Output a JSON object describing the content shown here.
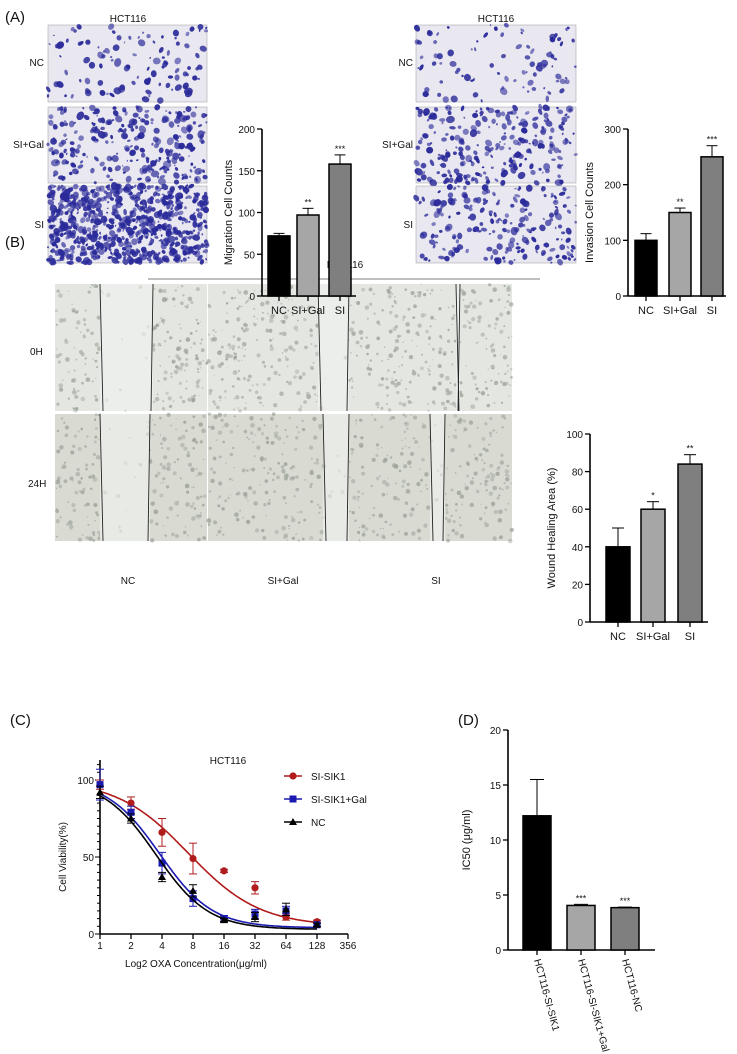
{
  "panels": {
    "A": {
      "label": "(A)",
      "left_title": "HCT116",
      "right_title": "HCT116",
      "row_labels": [
        "NC",
        "SI+Gal",
        "SI"
      ]
    },
    "B": {
      "label": "(B)",
      "title": "HCT116",
      "row_labels": [
        "0H",
        "24H"
      ],
      "col_labels": [
        "NC",
        "SI+Gal",
        "SI"
      ]
    },
    "C": {
      "label": "(C)"
    },
    "D": {
      "label": "(D)"
    }
  },
  "colors": {
    "black_bar": "#000000",
    "light_gray_bar": "#a6a6a6",
    "dark_gray_bar": "#7f7f7f",
    "si_sik1": "#b01c1c",
    "si_sik1_gal": "#1a1ab0",
    "nc": "#000000",
    "crystal_violet": "#2a2a9a"
  },
  "chart_data": [
    {
      "id": "migration",
      "type": "bar",
      "title": "",
      "xlabel": "",
      "ylabel": "Migration Cell Counts",
      "ylim": [
        0,
        200
      ],
      "yticks": [
        0,
        50,
        100,
        150,
        200
      ],
      "categories": [
        "NC",
        "SI+Gal",
        "SI"
      ],
      "values": [
        72,
        97,
        158
      ],
      "errors": [
        3,
        8,
        11
      ],
      "significance": [
        "",
        "**",
        "***"
      ],
      "bar_colors": [
        "#000000",
        "#a6a6a6",
        "#7f7f7f"
      ]
    },
    {
      "id": "invasion",
      "type": "bar",
      "title": "",
      "xlabel": "",
      "ylabel": "Invasion Cell Counts",
      "ylim": [
        0,
        300
      ],
      "yticks": [
        0,
        100,
        200,
        300
      ],
      "categories": [
        "NC",
        "SI+Gal",
        "SI"
      ],
      "values": [
        100,
        150,
        250
      ],
      "errors": [
        12,
        8,
        20
      ],
      "significance": [
        "",
        "**",
        "***"
      ],
      "bar_colors": [
        "#000000",
        "#a6a6a6",
        "#7f7f7f"
      ]
    },
    {
      "id": "wound",
      "type": "bar",
      "title": "",
      "xlabel": "",
      "ylabel": "Wound Healing Area (%)",
      "ylim": [
        0,
        100
      ],
      "yticks": [
        0,
        20,
        40,
        60,
        80,
        100
      ],
      "categories": [
        "NC",
        "SI+Gal",
        "SI"
      ],
      "values": [
        40,
        60,
        84
      ],
      "errors": [
        10,
        4,
        5
      ],
      "significance": [
        "",
        "*",
        "**"
      ],
      "bar_colors": [
        "#000000",
        "#a6a6a6",
        "#7f7f7f"
      ]
    },
    {
      "id": "viability",
      "type": "line",
      "title": "HCT116",
      "xlabel": "Log2 OXA Concentration(μg/ml)",
      "ylabel": "Cell Viability(%)",
      "xscale": "log2",
      "ylim": [
        0,
        110
      ],
      "yticks": [
        0,
        50,
        100
      ],
      "xticks": [
        "1",
        "2",
        "4",
        "8",
        "16",
        "32",
        "64",
        "128",
        "356"
      ],
      "legend_position": "top-right",
      "x": [
        1,
        2,
        4,
        8,
        16,
        32,
        64,
        128
      ],
      "series": [
        {
          "name": "SI-SIK1",
          "marker": "circle",
          "color": "#b01c1c",
          "values": [
            97,
            85,
            66,
            49,
            41,
            30,
            11,
            8
          ],
          "errors": [
            3,
            4,
            9,
            10,
            1,
            4,
            2,
            1
          ]
        },
        {
          "name": "SI-SIK1+Gal",
          "marker": "square",
          "color": "#1a1ab0",
          "values": [
            97,
            79,
            46,
            23,
            10,
            13,
            15,
            6
          ],
          "errors": [
            10,
            4,
            7,
            5,
            2,
            3,
            3,
            1
          ]
        },
        {
          "name": "NC",
          "marker": "triangle",
          "color": "#000000",
          "values": [
            92,
            75,
            37,
            28,
            9,
            11,
            16,
            6
          ],
          "errors": [
            4,
            3,
            3,
            4,
            1,
            3,
            4,
            1
          ]
        }
      ]
    },
    {
      "id": "ic50",
      "type": "bar",
      "title": "",
      "xlabel": "",
      "ylabel": "IC50 (μg/ml)",
      "ylim": [
        0,
        20
      ],
      "yticks": [
        0,
        5,
        10,
        15,
        20
      ],
      "categories": [
        "HCT116-SI-SIK1",
        "HCT116-SI-SIK1+Gal",
        "HCT116-NC"
      ],
      "values": [
        12.2,
        4.05,
        3.85
      ],
      "errors": [
        3.3,
        0.1,
        0.05
      ],
      "significance": [
        "",
        "***",
        "***"
      ],
      "bar_colors": [
        "#000000",
        "#a6a6a6",
        "#7f7f7f"
      ]
    }
  ]
}
